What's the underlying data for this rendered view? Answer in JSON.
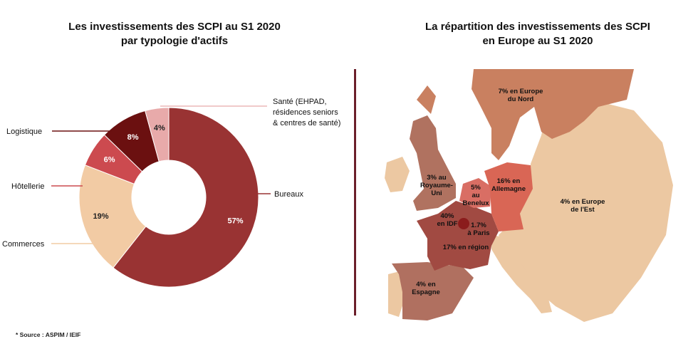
{
  "left_title_line1": "Les investissements des SCPI au S1 2020",
  "left_title_line2": "par typologie d'actifs",
  "right_title_line1": "La répartition des investissements des SCPI",
  "right_title_line2": "en Europe au S1 2020",
  "source": "* Source : ASPIM / IEIF",
  "chart_data": [
    {
      "type": "pie",
      "variant": "donut",
      "title": "Les investissements des SCPI au S1 2020 par typologie d'actifs",
      "slices": [
        {
          "name": "Bureaux",
          "value": 57,
          "label": "57%",
          "color": "#993333"
        },
        {
          "name": "Commerces",
          "value": 19,
          "label": "19%",
          "color": "#f2cba4"
        },
        {
          "name": "Hôtellerie",
          "value": 6,
          "label": "6%",
          "color": "#cc4a4f"
        },
        {
          "name": "Logistique",
          "value": 8,
          "label": "8%",
          "color": "#6b1010"
        },
        {
          "name": "Santé (EHPAD, résidences seniors & centres de santé)",
          "value": 4,
          "label": "4%",
          "color": "#e8aaaa"
        }
      ],
      "callouts": {
        "bureaux": "Bureaux",
        "commerces": "Commerces",
        "hotellerie": "Hôtellerie",
        "logistique": "Logistique",
        "sante": [
          "Santé (EHPAD,",
          "résidences seniors",
          "& centres de santé)"
        ]
      }
    },
    {
      "type": "map",
      "title": "La répartition des investissements des SCPI en Europe au S1 2020",
      "regions": [
        {
          "name": "Europe du Nord",
          "value": 7,
          "lines": [
            "7% en Europe",
            "du Nord"
          ],
          "color": "#c98060"
        },
        {
          "name": "Royaume-Uni",
          "value": 3,
          "lines": [
            "3% au",
            "Royaume-",
            "Uni"
          ],
          "color": "#b07260"
        },
        {
          "name": "Benelux",
          "value": 5,
          "lines": [
            "5%",
            "au",
            "Benelux"
          ],
          "color": "#d96e64"
        },
        {
          "name": "Allemagne",
          "value": 16,
          "lines": [
            "16% en",
            "Allemagne"
          ],
          "color": "#d96655"
        },
        {
          "name": "Europe de l'Est",
          "value": 4,
          "lines": [
            "4% en Europe",
            "de l'Est"
          ],
          "color": "#ecc8a2"
        },
        {
          "name": "IDF",
          "value": 40,
          "lines": [
            "40%",
            "en IDF"
          ],
          "color": "#8b1c1c"
        },
        {
          "name": "Paris",
          "value": 1.7,
          "lines": [
            "1.7%",
            "à Paris"
          ],
          "color": "#8b1c1c"
        },
        {
          "name": "France région",
          "value": 17,
          "lines": [
            "17% en région"
          ],
          "color": "#a14a42"
        },
        {
          "name": "Espagne",
          "value": 4,
          "lines": [
            "4% en",
            "Espagne"
          ],
          "color": "#b07060"
        }
      ]
    }
  ]
}
